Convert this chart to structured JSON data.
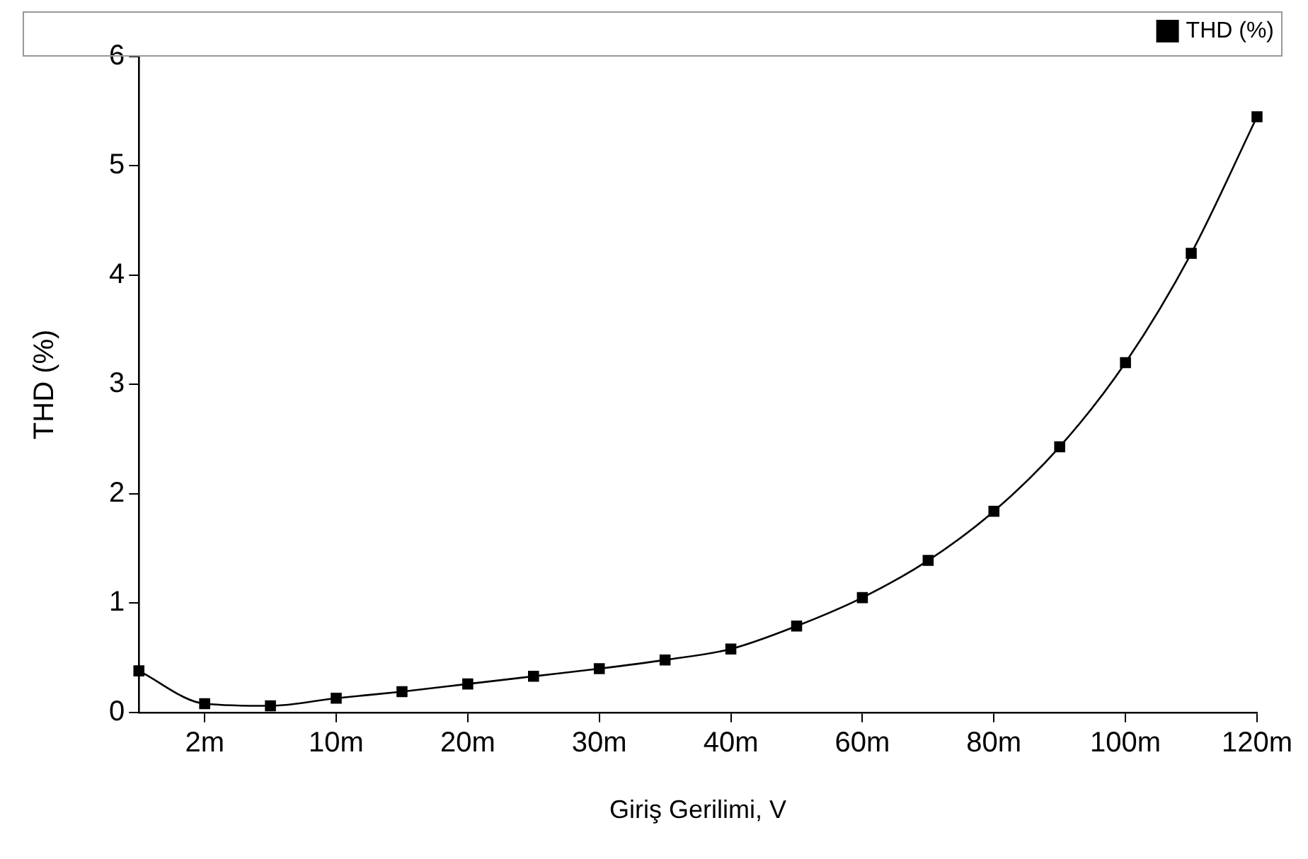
{
  "chart_data": {
    "type": "line",
    "xlabel": "Giriş Gerilimi, V",
    "ylabel": "THD (%)",
    "categories": [
      null,
      "2m",
      null,
      "10m",
      null,
      "20m",
      null,
      "30m",
      null,
      "40m",
      null,
      "60m",
      null,
      "80m",
      null,
      "100m",
      null,
      "120m"
    ],
    "series": [
      {
        "name": "THD (%)",
        "color": "#000000",
        "values": [
          0.38,
          0.08,
          0.06,
          0.13,
          0.19,
          0.26,
          0.33,
          0.4,
          0.48,
          0.58,
          0.79,
          1.05,
          1.39,
          1.84,
          2.43,
          3.2,
          4.2,
          5.45
        ]
      }
    ],
    "ylim": [
      0,
      6
    ],
    "yticks": [
      0,
      1,
      2,
      3,
      4,
      5,
      6
    ],
    "grid": false,
    "legend": "top right",
    "marker": "square",
    "line_style": "solid"
  }
}
